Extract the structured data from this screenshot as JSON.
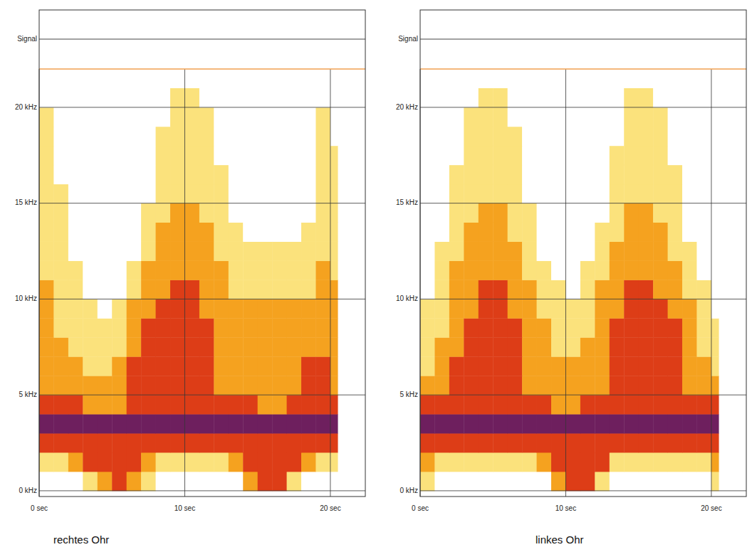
{
  "chart_data": [
    {
      "type": "heatmap",
      "title": "rechtes Ohr",
      "signal_label": "Signal",
      "xlim": [
        0,
        22.4
      ],
      "ylim": [
        -0.3,
        22
      ],
      "xticks": [
        {
          "value": 0,
          "label": "0 sec"
        },
        {
          "value": 10,
          "label": "10 sec"
        },
        {
          "value": 20,
          "label": "20 sec"
        }
      ],
      "yticks": [
        {
          "value": 0,
          "label": "0 kHz"
        },
        {
          "value": 5,
          "label": "5 kHz"
        },
        {
          "value": 10,
          "label": "10 kHz"
        },
        {
          "value": 15,
          "label": "15 kHz"
        },
        {
          "value": 20,
          "label": "20 kHz"
        }
      ],
      "grid": true,
      "zlim": [
        0,
        4
      ],
      "x_bins": [
        0,
        1,
        2,
        3,
        4,
        5,
        6,
        7,
        8,
        9,
        10,
        11,
        12,
        13,
        14,
        15,
        16,
        17,
        18,
        19,
        20,
        20.5
      ],
      "y_bins": [
        0,
        1,
        2,
        3,
        4,
        5,
        6,
        7,
        8,
        9,
        10,
        11,
        12,
        13,
        14,
        15,
        16,
        17,
        18,
        19,
        20,
        21
      ],
      "cells": [
        [
          0,
          0,
          0,
          1,
          2,
          3,
          2,
          1,
          0,
          0,
          0,
          0,
          0,
          0,
          2,
          3,
          3,
          1,
          0,
          0,
          0
        ],
        [
          1,
          1,
          2,
          3,
          3,
          3,
          3,
          2,
          1,
          1,
          1,
          1,
          1,
          2,
          3,
          3,
          3,
          3,
          2,
          1,
          1
        ],
        [
          3,
          3,
          3,
          3,
          3,
          3,
          3,
          3,
          3,
          3,
          3,
          3,
          3,
          3,
          3,
          3,
          3,
          3,
          3,
          3,
          3
        ],
        [
          4,
          4,
          4,
          4,
          4,
          4,
          4,
          4,
          4,
          4,
          4,
          4,
          4,
          4,
          4,
          4,
          4,
          4,
          4,
          4,
          4
        ],
        [
          3,
          3,
          3,
          2,
          2,
          2,
          3,
          3,
          3,
          3,
          3,
          3,
          3,
          3,
          3,
          2,
          2,
          3,
          3,
          3,
          3
        ],
        [
          2,
          2,
          2,
          2,
          2,
          2,
          3,
          3,
          3,
          3,
          3,
          3,
          2,
          2,
          2,
          2,
          2,
          2,
          3,
          3,
          2
        ],
        [
          2,
          2,
          2,
          1,
          1,
          2,
          3,
          3,
          3,
          3,
          3,
          3,
          2,
          2,
          2,
          2,
          2,
          2,
          3,
          3,
          2
        ],
        [
          2,
          2,
          1,
          1,
          1,
          1,
          2,
          3,
          3,
          3,
          3,
          3,
          2,
          2,
          2,
          2,
          2,
          2,
          2,
          2,
          2
        ],
        [
          2,
          1,
          1,
          1,
          1,
          1,
          2,
          3,
          3,
          3,
          3,
          3,
          2,
          2,
          2,
          2,
          2,
          2,
          2,
          2,
          2
        ],
        [
          2,
          1,
          1,
          1,
          0,
          1,
          2,
          2,
          3,
          3,
          3,
          2,
          2,
          2,
          2,
          2,
          2,
          2,
          2,
          2,
          2
        ],
        [
          2,
          1,
          1,
          0,
          0,
          0,
          1,
          2,
          2,
          3,
          3,
          2,
          2,
          1,
          1,
          1,
          1,
          1,
          1,
          2,
          2
        ],
        [
          1,
          1,
          1,
          0,
          0,
          0,
          1,
          2,
          2,
          2,
          2,
          2,
          2,
          1,
          1,
          1,
          1,
          1,
          1,
          2,
          1
        ],
        [
          1,
          1,
          0,
          0,
          0,
          0,
          0,
          1,
          2,
          2,
          2,
          2,
          1,
          1,
          1,
          1,
          1,
          1,
          1,
          1,
          1
        ],
        [
          1,
          1,
          0,
          0,
          0,
          0,
          0,
          1,
          2,
          2,
          2,
          2,
          1,
          1,
          0,
          0,
          0,
          0,
          1,
          1,
          1
        ],
        [
          1,
          1,
          0,
          0,
          0,
          0,
          0,
          1,
          1,
          2,
          2,
          1,
          1,
          0,
          0,
          0,
          0,
          0,
          0,
          1,
          1
        ],
        [
          1,
          1,
          0,
          0,
          0,
          0,
          0,
          0,
          1,
          1,
          1,
          1,
          1,
          0,
          0,
          0,
          0,
          0,
          0,
          1,
          1
        ],
        [
          1,
          0,
          0,
          0,
          0,
          0,
          0,
          0,
          1,
          1,
          1,
          1,
          1,
          0,
          0,
          0,
          0,
          0,
          0,
          1,
          1
        ],
        [
          1,
          0,
          0,
          0,
          0,
          0,
          0,
          0,
          1,
          1,
          1,
          1,
          0,
          0,
          0,
          0,
          0,
          0,
          0,
          1,
          1
        ],
        [
          1,
          0,
          0,
          0,
          0,
          0,
          0,
          0,
          1,
          1,
          1,
          1,
          0,
          0,
          0,
          0,
          0,
          0,
          0,
          1,
          0
        ],
        [
          1,
          0,
          0,
          0,
          0,
          0,
          0,
          0,
          0,
          1,
          1,
          1,
          0,
          0,
          0,
          0,
          0,
          0,
          0,
          1,
          0
        ],
        [
          0,
          0,
          0,
          0,
          0,
          0,
          0,
          0,
          0,
          1,
          1,
          0,
          0,
          0,
          0,
          0,
          0,
          0,
          0,
          0,
          0
        ]
      ]
    },
    {
      "type": "heatmap",
      "title": "linkes Ohr",
      "signal_label": "Signal",
      "xlim": [
        0,
        22.4
      ],
      "ylim": [
        -0.3,
        22
      ],
      "xticks": [
        {
          "value": 0,
          "label": "0 sec"
        },
        {
          "value": 10,
          "label": "10 sec"
        },
        {
          "value": 20,
          "label": "20 sec"
        }
      ],
      "yticks": [
        {
          "value": 0,
          "label": "0 kHz"
        },
        {
          "value": 5,
          "label": "5 kHz"
        },
        {
          "value": 10,
          "label": "10 kHz"
        },
        {
          "value": 15,
          "label": "15 kHz"
        },
        {
          "value": 20,
          "label": "20 kHz"
        }
      ],
      "grid": true,
      "zlim": [
        0,
        4
      ],
      "x_bins": [
        0,
        1,
        2,
        3,
        4,
        5,
        6,
        7,
        8,
        9,
        10,
        11,
        12,
        13,
        14,
        15,
        16,
        17,
        18,
        19,
        20,
        20.5
      ],
      "y_bins": [
        0,
        1,
        2,
        3,
        4,
        5,
        6,
        7,
        8,
        9,
        10,
        11,
        12,
        13,
        14,
        15,
        16,
        17,
        18,
        19,
        20,
        21
      ],
      "cells": [
        [
          1,
          0,
          0,
          0,
          0,
          0,
          0,
          0,
          0,
          2,
          3,
          3,
          1,
          0,
          0,
          0,
          0,
          0,
          0,
          0,
          1
        ],
        [
          2,
          1,
          1,
          1,
          1,
          1,
          1,
          1,
          2,
          3,
          3,
          3,
          3,
          1,
          1,
          1,
          1,
          1,
          1,
          1,
          2
        ],
        [
          3,
          3,
          3,
          3,
          3,
          3,
          3,
          3,
          3,
          3,
          3,
          3,
          3,
          3,
          3,
          3,
          3,
          3,
          3,
          3,
          3
        ],
        [
          4,
          4,
          4,
          4,
          4,
          4,
          4,
          4,
          4,
          4,
          4,
          4,
          4,
          4,
          4,
          4,
          4,
          4,
          4,
          4,
          4
        ],
        [
          3,
          3,
          3,
          3,
          3,
          3,
          3,
          3,
          3,
          2,
          2,
          3,
          3,
          3,
          3,
          3,
          3,
          3,
          3,
          3,
          3
        ],
        [
          2,
          2,
          3,
          3,
          3,
          3,
          3,
          2,
          2,
          2,
          2,
          2,
          2,
          3,
          3,
          3,
          3,
          3,
          2,
          2,
          2
        ],
        [
          1,
          2,
          3,
          3,
          3,
          3,
          3,
          2,
          2,
          2,
          2,
          2,
          2,
          3,
          3,
          3,
          3,
          3,
          2,
          2,
          1
        ],
        [
          1,
          2,
          2,
          3,
          3,
          3,
          3,
          2,
          2,
          1,
          1,
          2,
          2,
          3,
          3,
          3,
          3,
          3,
          2,
          1,
          1
        ],
        [
          1,
          1,
          2,
          3,
          3,
          3,
          3,
          2,
          2,
          1,
          1,
          1,
          2,
          3,
          3,
          3,
          3,
          3,
          2,
          1,
          1
        ],
        [
          1,
          1,
          2,
          2,
          3,
          3,
          2,
          2,
          1,
          1,
          1,
          1,
          2,
          2,
          3,
          3,
          3,
          2,
          2,
          1,
          0
        ],
        [
          0,
          1,
          2,
          2,
          3,
          3,
          2,
          2,
          1,
          1,
          0,
          1,
          2,
          2,
          3,
          3,
          2,
          2,
          1,
          1,
          0
        ],
        [
          0,
          1,
          2,
          2,
          2,
          2,
          2,
          1,
          1,
          0,
          0,
          1,
          1,
          2,
          2,
          2,
          2,
          2,
          1,
          0,
          0
        ],
        [
          0,
          1,
          1,
          2,
          2,
          2,
          2,
          1,
          0,
          0,
          0,
          0,
          1,
          2,
          2,
          2,
          2,
          1,
          1,
          0,
          0
        ],
        [
          0,
          0,
          1,
          2,
          2,
          2,
          1,
          1,
          0,
          0,
          0,
          0,
          1,
          1,
          2,
          2,
          2,
          1,
          0,
          0,
          0
        ],
        [
          0,
          0,
          1,
          1,
          2,
          2,
          1,
          1,
          0,
          0,
          0,
          0,
          0,
          1,
          2,
          2,
          1,
          1,
          0,
          0,
          0
        ],
        [
          0,
          0,
          1,
          1,
          1,
          1,
          1,
          0,
          0,
          0,
          0,
          0,
          0,
          1,
          1,
          1,
          1,
          1,
          0,
          0,
          0
        ],
        [
          0,
          0,
          1,
          1,
          1,
          1,
          1,
          0,
          0,
          0,
          0,
          0,
          0,
          1,
          1,
          1,
          1,
          1,
          0,
          0,
          0
        ],
        [
          0,
          0,
          0,
          1,
          1,
          1,
          1,
          0,
          0,
          0,
          0,
          0,
          0,
          1,
          1,
          1,
          1,
          0,
          0,
          0,
          0
        ],
        [
          0,
          0,
          0,
          1,
          1,
          1,
          1,
          0,
          0,
          0,
          0,
          0,
          0,
          0,
          1,
          1,
          1,
          0,
          0,
          0,
          0
        ],
        [
          0,
          0,
          0,
          1,
          1,
          1,
          0,
          0,
          0,
          0,
          0,
          0,
          0,
          0,
          1,
          1,
          1,
          0,
          0,
          0,
          0
        ],
        [
          0,
          0,
          0,
          0,
          1,
          1,
          0,
          0,
          0,
          0,
          0,
          0,
          0,
          0,
          1,
          1,
          0,
          0,
          0,
          0,
          0
        ]
      ]
    }
  ]
}
